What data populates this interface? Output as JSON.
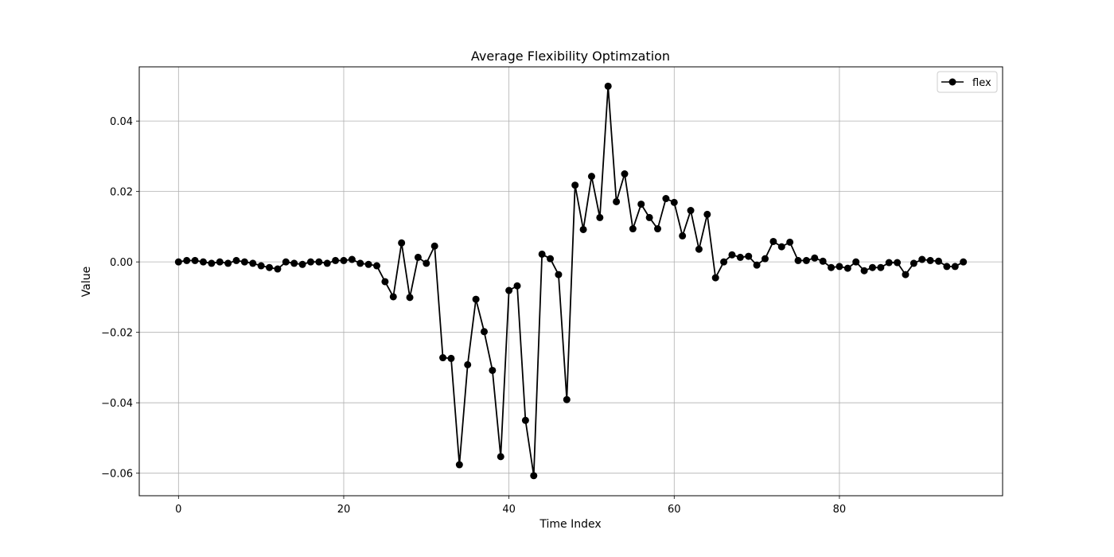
{
  "chart_data": {
    "type": "line",
    "title": "Average Flexibility Optimzation",
    "xlabel": "Time Index",
    "ylabel": "Value",
    "xlim": [
      -4.75,
      99.75
    ],
    "ylim": [
      -0.0664,
      0.0554
    ],
    "xticks": [
      0,
      20,
      40,
      60,
      80
    ],
    "yticks": [
      -0.06,
      -0.04,
      -0.02,
      0.0,
      0.02,
      0.04
    ],
    "xtick_labels": [
      "0",
      "20",
      "40",
      "60",
      "80"
    ],
    "ytick_labels": [
      "−0.06",
      "−0.04",
      "−0.02",
      "0.00",
      "0.02",
      "0.04"
    ],
    "grid": true,
    "legend_position": "top-right",
    "series": [
      {
        "name": "flex",
        "color": "#000000",
        "marker": "circle",
        "x": [
          0,
          1,
          2,
          3,
          4,
          5,
          6,
          7,
          8,
          9,
          10,
          11,
          12,
          13,
          14,
          15,
          16,
          17,
          18,
          19,
          20,
          21,
          22,
          23,
          24,
          25,
          26,
          27,
          28,
          29,
          30,
          31,
          32,
          33,
          34,
          35,
          36,
          37,
          38,
          39,
          40,
          41,
          42,
          43,
          44,
          45,
          46,
          47,
          48,
          49,
          50,
          51,
          52,
          53,
          54,
          55,
          56,
          57,
          58,
          59,
          60,
          61,
          62,
          63,
          64,
          65,
          66,
          67,
          68,
          69,
          70,
          71,
          72,
          73,
          74,
          75,
          76,
          77,
          78,
          79,
          80,
          81,
          82,
          83,
          84,
          85,
          86,
          87,
          88,
          89,
          90,
          91,
          92,
          93,
          94,
          95
        ],
        "values": [
          0.0,
          0.0004,
          0.0004,
          0.0,
          -0.0004,
          0.0,
          -0.0004,
          0.0004,
          0.0,
          -0.0004,
          -0.0011,
          -0.0016,
          -0.002,
          0.0,
          -0.0004,
          -0.0007,
          0.0,
          0.0,
          -0.0004,
          0.0004,
          0.0004,
          0.0007,
          -0.0004,
          -0.0007,
          -0.0011,
          -0.0056,
          -0.0099,
          0.0054,
          -0.0101,
          0.0013,
          -0.0004,
          0.0045,
          -0.0272,
          -0.0274,
          -0.0576,
          -0.0292,
          -0.0106,
          -0.0198,
          -0.0308,
          -0.0553,
          -0.0081,
          -0.0068,
          -0.045,
          -0.0607,
          0.0022,
          0.0009,
          -0.0036,
          -0.0391,
          0.0218,
          0.0092,
          0.0243,
          0.0126,
          0.0499,
          0.0171,
          0.025,
          0.0094,
          0.0164,
          0.0126,
          0.0094,
          0.018,
          0.0169,
          0.0074,
          0.0146,
          0.0036,
          0.0135,
          -0.0045,
          0.0,
          0.002,
          0.0013,
          0.0016,
          -0.0009,
          0.0009,
          0.0058,
          0.0043,
          0.0056,
          0.0004,
          0.0004,
          0.0011,
          0.0002,
          -0.0016,
          -0.0013,
          -0.0018,
          0.0,
          -0.0025,
          -0.0016,
          -0.0016,
          -0.0002,
          -0.0002,
          -0.0036,
          -0.0004,
          0.0007,
          0.0004,
          0.0002,
          -0.0013,
          -0.0013,
          0.0
        ]
      }
    ]
  }
}
